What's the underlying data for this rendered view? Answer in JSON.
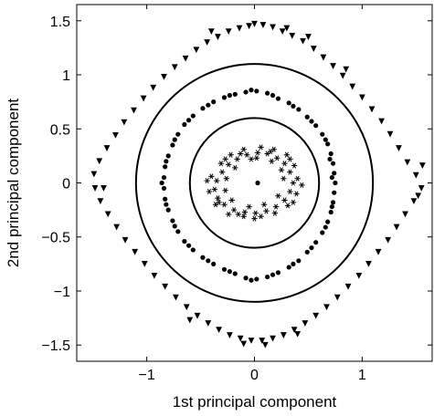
{
  "chart_data": {
    "type": "scatter",
    "xlabel": "1st principal component",
    "ylabel": "2nd principal component",
    "xlim": [
      -1.65,
      1.65
    ],
    "ylim": [
      -1.65,
      1.65
    ],
    "xticks": [
      -1,
      0,
      1
    ],
    "xtick_labels": [
      "−1",
      "0",
      "1"
    ],
    "yticks": [
      1.5,
      1,
      0.5,
      0,
      -0.5,
      -1,
      -1.5
    ],
    "ytick_labels": [
      "1.5",
      "1",
      "0.5",
      "0",
      "−0.5",
      "−1",
      "−1.5"
    ],
    "grid": false,
    "circles": [
      {
        "cx": 0,
        "cy": 0,
        "r": 0.6
      },
      {
        "cx": 0,
        "cy": 0,
        "r": 1.1
      }
    ],
    "series": [
      {
        "marker": "star",
        "color": "#000000",
        "points": [
          [
            0.36,
            0.0
          ],
          [
            0.33,
            0.1
          ],
          [
            0.28,
            0.18
          ],
          [
            0.21,
            0.23
          ],
          [
            0.12,
            0.27
          ],
          [
            0.03,
            0.28
          ],
          [
            -0.07,
            0.26
          ],
          [
            -0.16,
            0.22
          ],
          [
            -0.24,
            0.17
          ],
          [
            -0.3,
            0.1
          ],
          [
            -0.35,
            0.02
          ],
          [
            -0.37,
            -0.06
          ],
          [
            -0.34,
            -0.14
          ],
          [
            -0.28,
            -0.2
          ],
          [
            -0.19,
            -0.25
          ],
          [
            -0.09,
            -0.27
          ],
          [
            0.01,
            -0.28
          ],
          [
            0.11,
            -0.26
          ],
          [
            0.2,
            -0.22
          ],
          [
            0.28,
            -0.16
          ],
          [
            0.33,
            -0.08
          ],
          [
            0.4,
            0.04
          ],
          [
            0.37,
            0.16
          ],
          [
            0.3,
            0.26
          ],
          [
            0.18,
            0.31
          ],
          [
            0.06,
            0.33
          ],
          [
            -0.1,
            0.31
          ],
          [
            -0.22,
            0.26
          ],
          [
            -0.31,
            0.18
          ],
          [
            -0.4,
            0.06
          ],
          [
            -0.42,
            -0.08
          ],
          [
            -0.36,
            -0.2
          ],
          [
            -0.24,
            -0.29
          ],
          [
            -0.1,
            -0.31
          ],
          [
            0.06,
            -0.31
          ],
          [
            0.19,
            -0.28
          ],
          [
            0.31,
            -0.21
          ],
          [
            0.39,
            -0.1
          ],
          [
            0.25,
            0.12
          ],
          [
            0.16,
            0.2
          ],
          [
            -0.03,
            0.22
          ],
          [
            -0.18,
            0.14
          ],
          [
            -0.26,
            0.04
          ],
          [
            -0.27,
            -0.07
          ],
          [
            -0.21,
            -0.16
          ],
          [
            -0.05,
            -0.22
          ],
          [
            0.09,
            -0.2
          ],
          [
            0.22,
            -0.12
          ],
          [
            0.27,
            0.04
          ],
          [
            -0.13,
            0.27
          ],
          [
            0.33,
            0.22
          ],
          [
            -0.33,
            -0.18
          ],
          [
            0.44,
            -0.02
          ],
          [
            -0.44,
            0.02
          ],
          [
            0.02,
            0.23
          ],
          [
            0.0,
            -0.33
          ],
          [
            0.15,
            0.29
          ],
          [
            -0.27,
            0.22
          ],
          [
            0.36,
            -0.18
          ],
          [
            -0.15,
            -0.29
          ]
        ]
      },
      {
        "marker": "dot",
        "color": "#000000",
        "points": [
          [
            0.03,
            0.0
          ]
        ]
      },
      {
        "marker": "dot",
        "color": "#000000",
        "points": [
          [
            0.75,
            0.0
          ],
          [
            0.74,
            0.09
          ],
          [
            0.73,
            0.18
          ],
          [
            0.71,
            0.27
          ],
          [
            0.68,
            0.36
          ],
          [
            0.63,
            0.45
          ],
          [
            0.57,
            0.53
          ],
          [
            0.49,
            0.61
          ],
          [
            0.41,
            0.68
          ],
          [
            0.32,
            0.74
          ],
          [
            0.22,
            0.78
          ],
          [
            0.12,
            0.83
          ],
          [
            0.02,
            0.85
          ],
          [
            -0.08,
            0.84
          ],
          [
            -0.18,
            0.82
          ],
          [
            -0.28,
            0.79
          ],
          [
            -0.38,
            0.75
          ],
          [
            -0.48,
            0.69
          ],
          [
            -0.57,
            0.62
          ],
          [
            -0.65,
            0.54
          ],
          [
            -0.71,
            0.45
          ],
          [
            -0.76,
            0.35
          ],
          [
            -0.8,
            0.25
          ],
          [
            -0.83,
            0.15
          ],
          [
            -0.84,
            0.05
          ],
          [
            -0.84,
            -0.05
          ],
          [
            -0.83,
            -0.15
          ],
          [
            -0.8,
            -0.25
          ],
          [
            -0.76,
            -0.35
          ],
          [
            -0.71,
            -0.45
          ],
          [
            -0.65,
            -0.54
          ],
          [
            -0.57,
            -0.62
          ],
          [
            -0.48,
            -0.69
          ],
          [
            -0.38,
            -0.75
          ],
          [
            -0.28,
            -0.8
          ],
          [
            -0.18,
            -0.84
          ],
          [
            -0.08,
            -0.88
          ],
          [
            0.02,
            -0.89
          ],
          [
            0.12,
            -0.87
          ],
          [
            0.22,
            -0.83
          ],
          [
            0.32,
            -0.78
          ],
          [
            0.41,
            -0.72
          ],
          [
            0.49,
            -0.64
          ],
          [
            0.57,
            -0.55
          ],
          [
            0.63,
            -0.46
          ],
          [
            0.68,
            -0.36
          ],
          [
            0.71,
            -0.27
          ],
          [
            0.73,
            -0.18
          ],
          [
            0.74,
            -0.09
          ],
          [
            0.72,
            0.05
          ],
          [
            0.7,
            0.22
          ],
          [
            0.66,
            0.4
          ],
          [
            0.53,
            0.57
          ],
          [
            0.36,
            0.71
          ],
          [
            0.17,
            0.81
          ],
          [
            -0.03,
            0.86
          ],
          [
            -0.23,
            0.81
          ],
          [
            -0.43,
            0.72
          ],
          [
            -0.61,
            0.58
          ],
          [
            -0.74,
            0.4
          ],
          [
            -0.82,
            0.2
          ],
          [
            -0.86,
            0.0
          ],
          [
            -0.82,
            -0.2
          ],
          [
            -0.74,
            -0.4
          ],
          [
            -0.61,
            -0.58
          ],
          [
            -0.43,
            -0.72
          ],
          [
            -0.23,
            -0.82
          ],
          [
            -0.03,
            -0.9
          ],
          [
            0.17,
            -0.85
          ],
          [
            0.36,
            -0.75
          ],
          [
            0.53,
            -0.6
          ],
          [
            0.66,
            -0.41
          ],
          [
            0.72,
            -0.22
          ]
        ]
      },
      {
        "marker": "triangle-down",
        "color": "#000000",
        "points": [
          [
            0.0,
            1.47
          ],
          [
            0.08,
            1.46
          ],
          [
            0.17,
            1.44
          ],
          [
            0.26,
            1.4
          ],
          [
            0.35,
            1.36
          ],
          [
            0.45,
            1.31
          ],
          [
            0.55,
            1.24
          ],
          [
            0.64,
            1.16
          ],
          [
            0.73,
            1.08
          ],
          [
            0.82,
            0.99
          ],
          [
            0.91,
            0.89
          ],
          [
            1.0,
            0.79
          ],
          [
            1.09,
            0.68
          ],
          [
            1.18,
            0.57
          ],
          [
            1.26,
            0.45
          ],
          [
            1.34,
            0.32
          ],
          [
            1.42,
            0.19
          ],
          [
            1.5,
            0.07
          ],
          [
            1.56,
            0.16
          ],
          [
            1.55,
            -0.05
          ],
          [
            1.48,
            -0.17
          ],
          [
            1.4,
            -0.29
          ],
          [
            1.32,
            -0.41
          ],
          [
            1.24,
            -0.53
          ],
          [
            1.15,
            -0.64
          ],
          [
            1.06,
            -0.75
          ],
          [
            0.97,
            -0.86
          ],
          [
            0.87,
            -0.96
          ],
          [
            0.77,
            -1.06
          ],
          [
            0.67,
            -1.15
          ],
          [
            0.57,
            -1.23
          ],
          [
            0.47,
            -1.3
          ],
          [
            0.37,
            -1.36
          ],
          [
            0.27,
            -1.41
          ],
          [
            0.17,
            -1.44
          ],
          [
            0.07,
            -1.46
          ],
          [
            -0.03,
            -1.46
          ],
          [
            -0.13,
            -1.44
          ],
          [
            -0.23,
            -1.41
          ],
          [
            -0.33,
            -1.36
          ],
          [
            -0.43,
            -1.3
          ],
          [
            -0.53,
            -1.23
          ],
          [
            -0.63,
            -1.15
          ],
          [
            -0.73,
            -1.06
          ],
          [
            -0.83,
            -0.96
          ],
          [
            -0.93,
            -0.86
          ],
          [
            -1.02,
            -0.75
          ],
          [
            -1.11,
            -0.64
          ],
          [
            -1.2,
            -0.53
          ],
          [
            -1.28,
            -0.41
          ],
          [
            -1.36,
            -0.29
          ],
          [
            -1.43,
            -0.17
          ],
          [
            -1.48,
            -0.05
          ],
          [
            -1.49,
            0.08
          ],
          [
            -1.44,
            0.2
          ],
          [
            -1.37,
            0.32
          ],
          [
            -1.29,
            0.44
          ],
          [
            -1.21,
            0.56
          ],
          [
            -1.12,
            0.67
          ],
          [
            -1.03,
            0.78
          ],
          [
            -0.94,
            0.88
          ],
          [
            -0.84,
            0.98
          ],
          [
            -0.74,
            1.07
          ],
          [
            -0.64,
            1.15
          ],
          [
            -0.54,
            1.23
          ],
          [
            -0.44,
            1.3
          ],
          [
            -0.34,
            1.35
          ],
          [
            -0.24,
            1.4
          ],
          [
            -0.14,
            1.43
          ],
          [
            -0.05,
            1.45
          ],
          [
            0.3,
            1.43
          ],
          [
            0.5,
            1.35
          ],
          [
            -0.4,
            1.4
          ],
          [
            1.52,
            -0.12
          ],
          [
            -1.4,
            -0.05
          ],
          [
            0.1,
            -1.5
          ],
          [
            -0.1,
            -1.49
          ],
          [
            0.4,
            -1.4
          ],
          [
            -0.6,
            -1.27
          ],
          [
            0.85,
            1.05
          ]
        ]
      }
    ]
  }
}
